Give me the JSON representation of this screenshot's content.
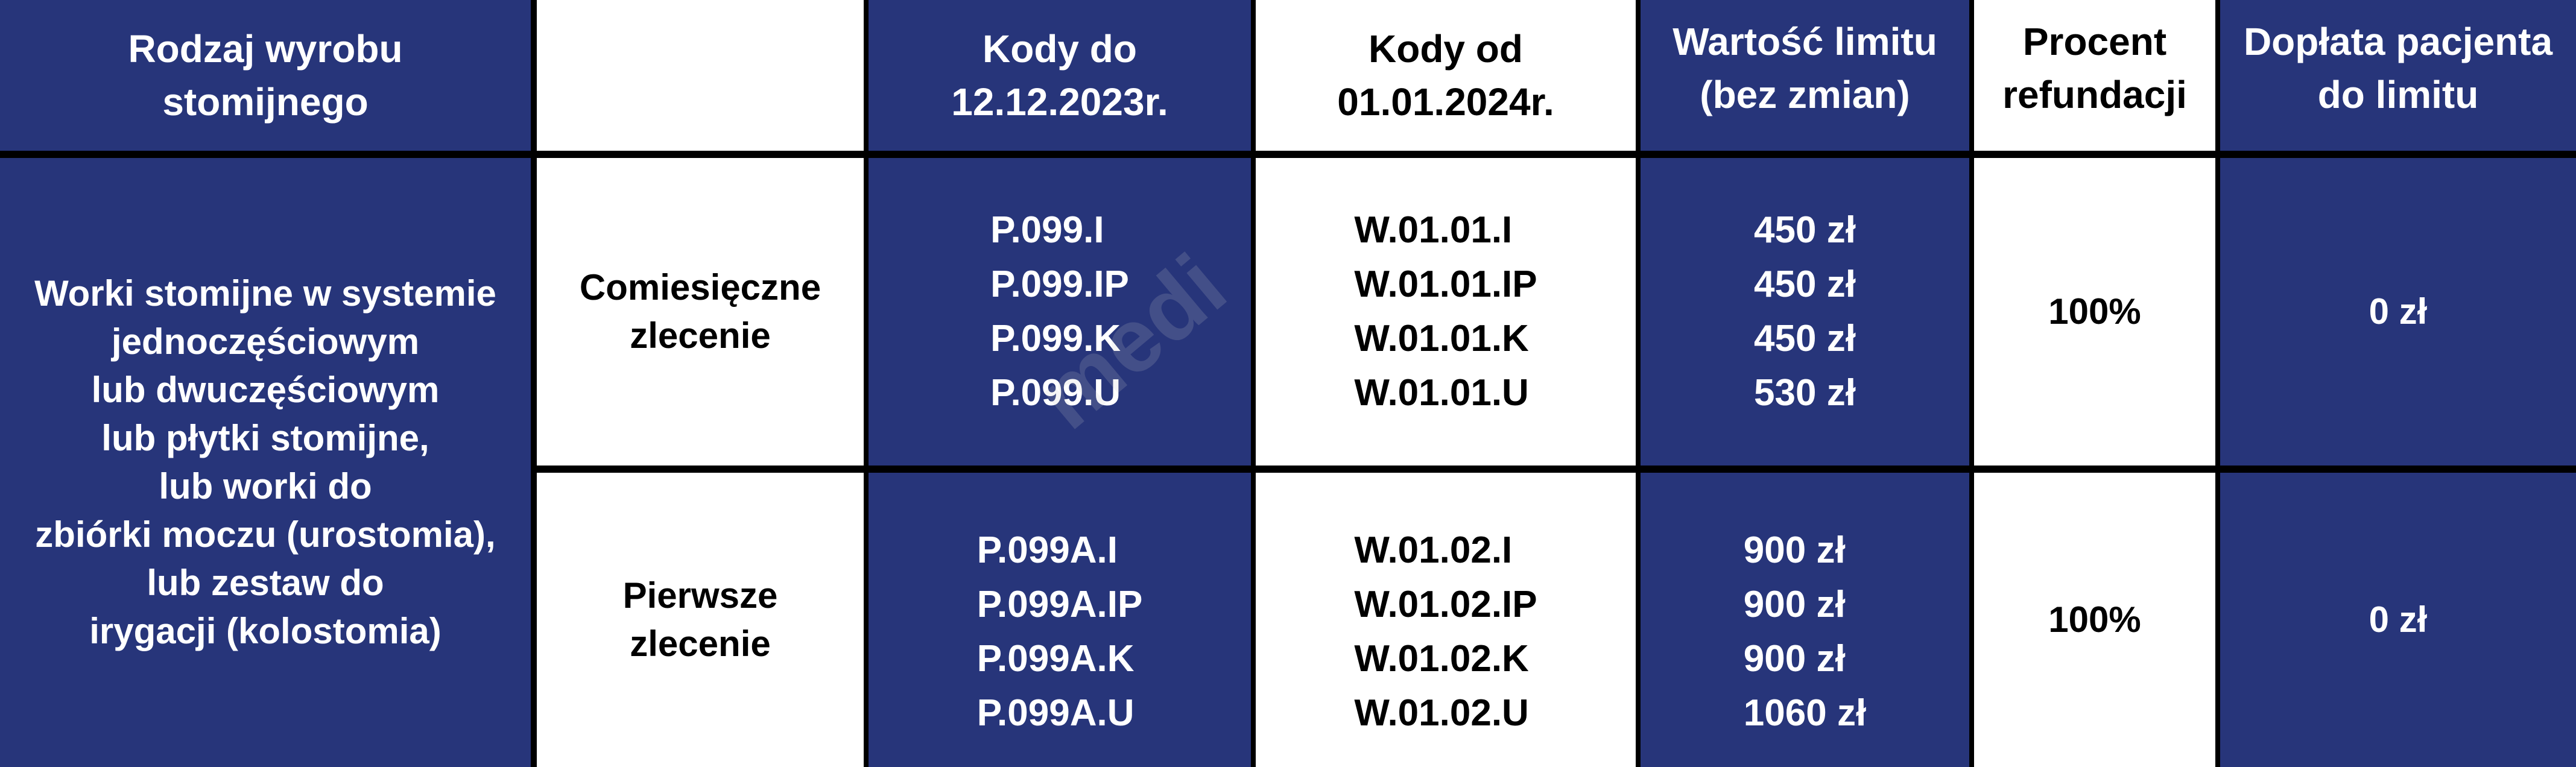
{
  "header": {
    "col1": [
      "Rodzaj wyrobu",
      "stomijnego"
    ],
    "col2": "",
    "col3": [
      "Kody do",
      "12.12.2023r."
    ],
    "col4": [
      "Kody od",
      "01.01.2024r."
    ],
    "col5": [
      "Wartość limitu",
      "(bez zmian)"
    ],
    "col6": [
      "Procent",
      "refundacji"
    ],
    "col7": [
      "Dopłata pacjenta",
      "do limitu"
    ]
  },
  "product": [
    "Worki stomijne w systemie",
    "jednoczęściowym",
    "lub dwuczęściowym",
    "lub płytki stomijne,",
    "lub worki do",
    "zbiórki moczu (urostomia),",
    "lub zestaw do",
    "irygacji (kolostomia)"
  ],
  "rows": [
    {
      "order": [
        "Comiesięczne",
        "zlecenie"
      ],
      "old_codes": [
        "P.099.I",
        "P.099.IP",
        "P.099.K",
        "P.099.U"
      ],
      "new_codes": [
        "W.01.01.I",
        "W.01.01.IP",
        "W.01.01.K",
        "W.01.01.U"
      ],
      "limits": [
        "450 zł",
        "450 zł",
        "450 zł",
        "530 zł"
      ],
      "refund": "100%",
      "copay": "0 zł"
    },
    {
      "order": [
        "Pierwsze",
        "zlecenie"
      ],
      "old_codes": [
        "P.099A.I",
        "P.099A.IP",
        "P.099A.K",
        "P.099A.U"
      ],
      "new_codes": [
        "W.01.02.I",
        "W.01.02.IP",
        "W.01.02.K",
        "W.01.02.U"
      ],
      "limits": [
        "900 zł",
        "900 zł",
        "900 zł",
        "1060 zł"
      ],
      "refund": "100%",
      "copay": "0 zł"
    }
  ],
  "colors": {
    "blue": "#27357a",
    "white": "#ffffff",
    "border": "#000000"
  }
}
